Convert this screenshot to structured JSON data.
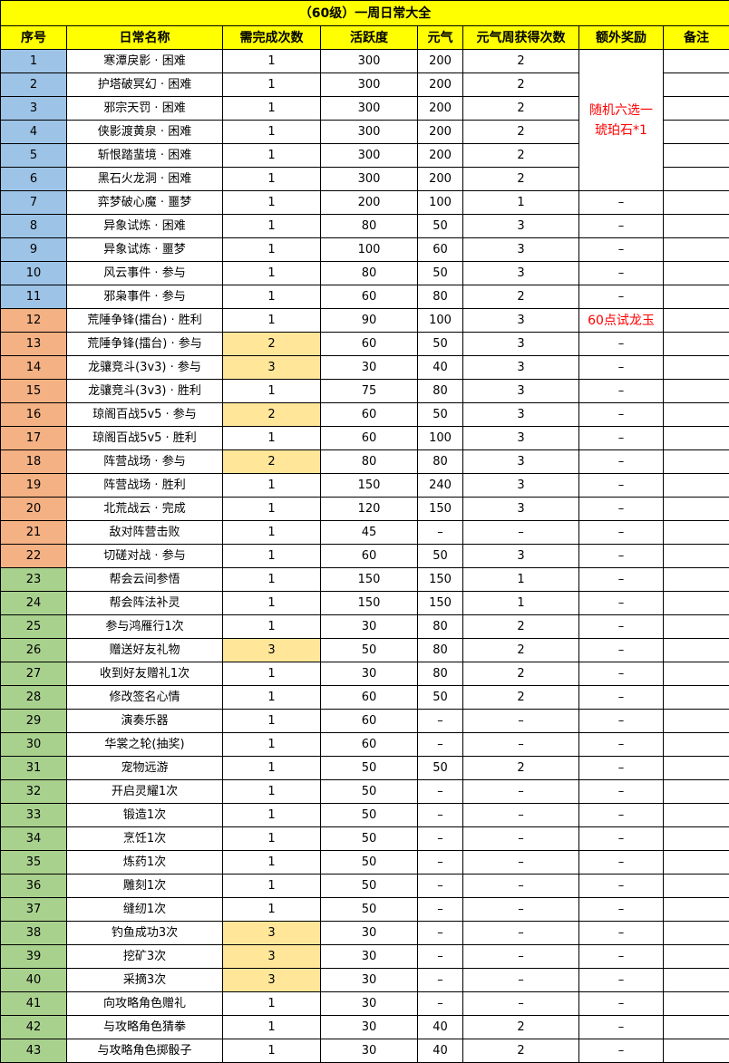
{
  "title": "（60级）一周日常大全",
  "headers": [
    "序号",
    "日常名称",
    "需完成次数",
    "活跃度",
    "元气",
    "元气周获得次数",
    "额外奖励",
    "备注"
  ],
  "colors": {
    "header_bg": "#ffff00",
    "group_pve": "#9dc3e6",
    "group_pvp": "#f4b183",
    "group_life": "#a9d18e",
    "highlight": "#ffe699",
    "reward_text": "#ff0000"
  },
  "merged_reward": {
    "rows": "1-6",
    "text": "随机六选一琥珀石*1"
  },
  "rows": [
    {
      "no": "1",
      "name": "寒潭戾影 · 困难",
      "times": "1",
      "active": "300",
      "yuanqi": "200",
      "weekly": "2",
      "reward": "",
      "note": "",
      "group": "pve"
    },
    {
      "no": "2",
      "name": "护塔破冥幻 · 困难",
      "times": "1",
      "active": "300",
      "yuanqi": "200",
      "weekly": "2",
      "reward": "",
      "note": "",
      "group": "pve"
    },
    {
      "no": "3",
      "name": "邪宗天罚 · 困难",
      "times": "1",
      "active": "300",
      "yuanqi": "200",
      "weekly": "2",
      "reward": "",
      "note": "",
      "group": "pve"
    },
    {
      "no": "4",
      "name": "侠影渡黄泉 · 困难",
      "times": "1",
      "active": "300",
      "yuanqi": "200",
      "weekly": "2",
      "reward": "",
      "note": "",
      "group": "pve"
    },
    {
      "no": "5",
      "name": "斩恨踏蜚境 · 困难",
      "times": "1",
      "active": "300",
      "yuanqi": "200",
      "weekly": "2",
      "reward": "",
      "note": "",
      "group": "pve"
    },
    {
      "no": "6",
      "name": "黑石火龙洞 · 困难",
      "times": "1",
      "active": "300",
      "yuanqi": "200",
      "weekly": "2",
      "reward": "",
      "note": "",
      "group": "pve"
    },
    {
      "no": "7",
      "name": "弈梦破心魔 · 噩梦",
      "times": "1",
      "active": "200",
      "yuanqi": "100",
      "weekly": "1",
      "reward": "–",
      "note": "",
      "group": "pve"
    },
    {
      "no": "8",
      "name": "异象试炼 · 困难",
      "times": "1",
      "active": "80",
      "yuanqi": "50",
      "weekly": "3",
      "reward": "–",
      "note": "",
      "group": "pve"
    },
    {
      "no": "9",
      "name": "异象试炼 · 噩梦",
      "times": "1",
      "active": "100",
      "yuanqi": "60",
      "weekly": "3",
      "reward": "–",
      "note": "",
      "group": "pve"
    },
    {
      "no": "10",
      "name": "风云事件 · 参与",
      "times": "1",
      "active": "80",
      "yuanqi": "50",
      "weekly": "3",
      "reward": "–",
      "note": "",
      "group": "pve"
    },
    {
      "no": "11",
      "name": "邪枭事件 · 参与",
      "times": "1",
      "active": "60",
      "yuanqi": "80",
      "weekly": "2",
      "reward": "–",
      "note": "",
      "group": "pve"
    },
    {
      "no": "12",
      "name": "荒陲争锋(擂台) · 胜利",
      "times": "1",
      "active": "90",
      "yuanqi": "100",
      "weekly": "3",
      "reward": "60点试龙玉",
      "note": "",
      "group": "pvp"
    },
    {
      "no": "13",
      "name": "荒陲争锋(擂台) · 参与",
      "times": "2",
      "active": "60",
      "yuanqi": "50",
      "weekly": "3",
      "reward": "–",
      "note": "",
      "group": "pvp"
    },
    {
      "no": "14",
      "name": "龙骧竞斗(3v3) · 参与",
      "times": "3",
      "active": "30",
      "yuanqi": "40",
      "weekly": "3",
      "reward": "–",
      "note": "",
      "group": "pvp"
    },
    {
      "no": "15",
      "name": "龙骧竞斗(3v3) · 胜利",
      "times": "1",
      "active": "75",
      "yuanqi": "80",
      "weekly": "3",
      "reward": "–",
      "note": "",
      "group": "pvp"
    },
    {
      "no": "16",
      "name": "琼阁百战5v5 · 参与",
      "times": "2",
      "active": "60",
      "yuanqi": "50",
      "weekly": "3",
      "reward": "–",
      "note": "",
      "group": "pvp"
    },
    {
      "no": "17",
      "name": "琼阁百战5v5 · 胜利",
      "times": "1",
      "active": "60",
      "yuanqi": "100",
      "weekly": "3",
      "reward": "–",
      "note": "",
      "group": "pvp"
    },
    {
      "no": "18",
      "name": "阵营战场 · 参与",
      "times": "2",
      "active": "80",
      "yuanqi": "80",
      "weekly": "3",
      "reward": "–",
      "note": "",
      "group": "pvp"
    },
    {
      "no": "19",
      "name": "阵营战场 · 胜利",
      "times": "1",
      "active": "150",
      "yuanqi": "240",
      "weekly": "3",
      "reward": "–",
      "note": "",
      "group": "pvp"
    },
    {
      "no": "20",
      "name": "北荒战云 · 完成",
      "times": "1",
      "active": "120",
      "yuanqi": "150",
      "weekly": "3",
      "reward": "–",
      "note": "",
      "group": "pvp"
    },
    {
      "no": "21",
      "name": "敌对阵营击败",
      "times": "1",
      "active": "45",
      "yuanqi": "–",
      "weekly": "–",
      "reward": "–",
      "note": "",
      "group": "pvp"
    },
    {
      "no": "22",
      "name": "切磋对战 · 参与",
      "times": "1",
      "active": "60",
      "yuanqi": "50",
      "weekly": "3",
      "reward": "–",
      "note": "",
      "group": "pvp"
    },
    {
      "no": "23",
      "name": "帮会云间参悟",
      "times": "1",
      "active": "150",
      "yuanqi": "150",
      "weekly": "1",
      "reward": "–",
      "note": "",
      "group": "life"
    },
    {
      "no": "24",
      "name": "帮会阵法补灵",
      "times": "1",
      "active": "150",
      "yuanqi": "150",
      "weekly": "1",
      "reward": "–",
      "note": "",
      "group": "life"
    },
    {
      "no": "25",
      "name": "参与鸿雁行1次",
      "times": "1",
      "active": "30",
      "yuanqi": "80",
      "weekly": "2",
      "reward": "–",
      "note": "",
      "group": "life"
    },
    {
      "no": "26",
      "name": "赠送好友礼物",
      "times": "3",
      "active": "50",
      "yuanqi": "80",
      "weekly": "2",
      "reward": "–",
      "note": "",
      "group": "life"
    },
    {
      "no": "27",
      "name": "收到好友赠礼1次",
      "times": "1",
      "active": "30",
      "yuanqi": "80",
      "weekly": "2",
      "reward": "–",
      "note": "",
      "group": "life"
    },
    {
      "no": "28",
      "name": "修改签名心情",
      "times": "1",
      "active": "60",
      "yuanqi": "50",
      "weekly": "2",
      "reward": "–",
      "note": "",
      "group": "life"
    },
    {
      "no": "29",
      "name": "演奏乐器",
      "times": "1",
      "active": "60",
      "yuanqi": "–",
      "weekly": "–",
      "reward": "–",
      "note": "",
      "group": "life"
    },
    {
      "no": "30",
      "name": "华裳之轮(抽奖)",
      "times": "1",
      "active": "60",
      "yuanqi": "–",
      "weekly": "–",
      "reward": "–",
      "note": "",
      "group": "life"
    },
    {
      "no": "31",
      "name": "宠物远游",
      "times": "1",
      "active": "50",
      "yuanqi": "50",
      "weekly": "2",
      "reward": "–",
      "note": "",
      "group": "life"
    },
    {
      "no": "32",
      "name": "开启灵耀1次",
      "times": "1",
      "active": "50",
      "yuanqi": "–",
      "weekly": "–",
      "reward": "–",
      "note": "",
      "group": "life"
    },
    {
      "no": "33",
      "name": "锻造1次",
      "times": "1",
      "active": "50",
      "yuanqi": "–",
      "weekly": "–",
      "reward": "–",
      "note": "",
      "group": "life"
    },
    {
      "no": "34",
      "name": "烹饪1次",
      "times": "1",
      "active": "50",
      "yuanqi": "–",
      "weekly": "–",
      "reward": "–",
      "note": "",
      "group": "life"
    },
    {
      "no": "35",
      "name": "炼药1次",
      "times": "1",
      "active": "50",
      "yuanqi": "–",
      "weekly": "–",
      "reward": "–",
      "note": "",
      "group": "life"
    },
    {
      "no": "36",
      "name": "雕刻1次",
      "times": "1",
      "active": "50",
      "yuanqi": "–",
      "weekly": "–",
      "reward": "–",
      "note": "",
      "group": "life"
    },
    {
      "no": "37",
      "name": "缝纫1次",
      "times": "1",
      "active": "50",
      "yuanqi": "–",
      "weekly": "–",
      "reward": "–",
      "note": "",
      "group": "life"
    },
    {
      "no": "38",
      "name": "钓鱼成功3次",
      "times": "3",
      "active": "30",
      "yuanqi": "–",
      "weekly": "–",
      "reward": "–",
      "note": "",
      "group": "life"
    },
    {
      "no": "39",
      "name": "挖矿3次",
      "times": "3",
      "active": "30",
      "yuanqi": "–",
      "weekly": "–",
      "reward": "–",
      "note": "",
      "group": "life"
    },
    {
      "no": "40",
      "name": "采摘3次",
      "times": "3",
      "active": "30",
      "yuanqi": "–",
      "weekly": "–",
      "reward": "–",
      "note": "",
      "group": "life"
    },
    {
      "no": "41",
      "name": "向攻略角色赠礼",
      "times": "1",
      "active": "30",
      "yuanqi": "–",
      "weekly": "–",
      "reward": "–",
      "note": "",
      "group": "life"
    },
    {
      "no": "42",
      "name": "与攻略角色猜拳",
      "times": "1",
      "active": "30",
      "yuanqi": "40",
      "weekly": "2",
      "reward": "–",
      "note": "",
      "group": "life"
    },
    {
      "no": "43",
      "name": "与攻略角色掷骰子",
      "times": "1",
      "active": "30",
      "yuanqi": "40",
      "weekly": "2",
      "reward": "–",
      "note": "",
      "group": "life"
    }
  ]
}
